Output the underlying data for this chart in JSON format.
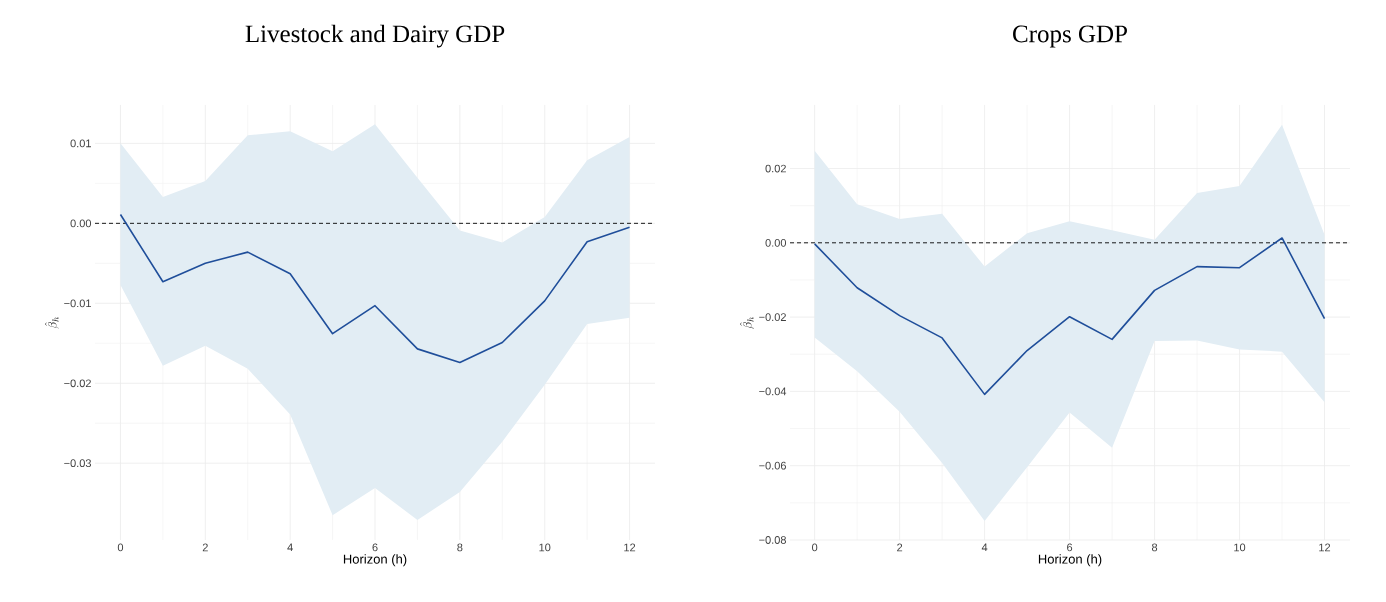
{
  "chart_data": [
    {
      "type": "line",
      "title": "Livestock and Dairy GDP",
      "xlabel": "Horizon (h)",
      "ylabel": "\\hat{\\beta}_h",
      "x": [
        0,
        1,
        2,
        3,
        4,
        5,
        6,
        7,
        8,
        9,
        10,
        11,
        12
      ],
      "series": [
        {
          "color": "#1f4e9a",
          "values": [
            0.0011,
            -0.0073,
            -0.005,
            -0.0036,
            -0.0063,
            -0.0138,
            -0.0103,
            -0.0157,
            -0.0174,
            -0.0149,
            -0.0097,
            -0.0023,
            -0.0005
          ],
          "upper": [
            0.01,
            0.0033,
            0.0053,
            0.011,
            0.0115,
            0.009,
            0.0124,
            0.0057,
            -0.0009,
            -0.0024,
            0.0008,
            0.0079,
            0.0108
          ],
          "lower": [
            -0.0077,
            -0.0178,
            -0.0153,
            -0.0182,
            -0.0239,
            -0.0365,
            -0.0331,
            -0.0371,
            -0.0336,
            -0.0273,
            -0.0202,
            -0.0126,
            -0.0118
          ]
        }
      ],
      "xlim": [
        -0.6,
        12.6
      ],
      "ylim": [
        -0.0396,
        0.0148
      ],
      "xticks": [
        0,
        2,
        4,
        6,
        8,
        10,
        12
      ],
      "yticks": [
        {
          "value": -0.03,
          "label": "−0.03"
        },
        {
          "value": -0.02,
          "label": "−0.02"
        },
        {
          "value": -0.01,
          "label": "−0.01"
        },
        {
          "value": 0,
          "label": "0.00"
        },
        0.01
      ],
      "ref_lines": [
        {
          "axis": "y",
          "value": 0,
          "color": "#000000",
          "line_style": "dashed"
        }
      ],
      "grid": true
    },
    {
      "type": "line",
      "title": "Crops GDP",
      "xlabel": "Horizon (h)",
      "ylabel": "\\hat{\\beta}_h",
      "x": [
        0,
        1,
        2,
        3,
        4,
        5,
        6,
        7,
        8,
        9,
        10,
        11,
        12
      ],
      "series": [
        {
          "color": "#1f4e9a",
          "values": [
            -0.0003,
            -0.0121,
            -0.0196,
            -0.0256,
            -0.0408,
            -0.029,
            -0.0199,
            -0.026,
            -0.0128,
            -0.0064,
            -0.0067,
            0.0013,
            -0.0204
          ],
          "upper": [
            0.0248,
            0.0104,
            0.0064,
            0.0078,
            -0.0064,
            0.0026,
            0.0058,
            0.0034,
            0.0008,
            0.0134,
            0.0153,
            0.0318,
            0.0022
          ],
          "lower": [
            -0.0255,
            -0.0346,
            -0.0455,
            -0.0593,
            -0.0749,
            -0.0604,
            -0.0457,
            -0.0552,
            -0.0264,
            -0.0263,
            -0.0287,
            -0.0293,
            -0.0429
          ]
        }
      ],
      "xlim": [
        -0.58,
        12.6
      ],
      "ylim": [
        -0.08,
        0.0371
      ],
      "xticks": [
        0,
        2,
        4,
        6,
        8,
        10,
        12
      ],
      "yticks": [
        {
          "value": -0.08,
          "label": "−0.08"
        },
        {
          "value": -0.06,
          "label": "−0.06"
        },
        {
          "value": -0.04,
          "label": "−0.04"
        },
        {
          "value": -0.02,
          "label": "−0.02"
        },
        {
          "value": 0,
          "label": "0.00"
        },
        0.02
      ],
      "ref_lines": [
        {
          "axis": "y",
          "value": 0,
          "color": "#000000",
          "line_style": "dashed"
        }
      ],
      "grid": true
    }
  ]
}
